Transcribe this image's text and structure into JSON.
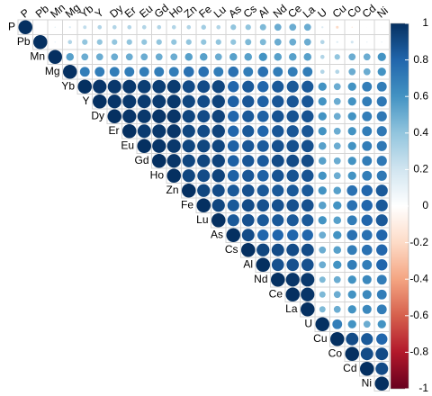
{
  "chart_data": {
    "type": "corrplot",
    "labels": [
      "P",
      "Pb",
      "Mn",
      "Mg",
      "Yb",
      "Y",
      "Dy",
      "Er",
      "Eu",
      "Gd",
      "Ho",
      "Zn",
      "Fe",
      "Lu",
      "As",
      "Cs",
      "Al",
      "Nd",
      "Ce",
      "La",
      "U",
      "Cu",
      "Co",
      "Cd",
      "Ni"
    ],
    "matrix": [
      [
        1,
        0.05,
        0.1,
        0.15,
        0.25,
        0.3,
        0.3,
        0.3,
        0.3,
        0.3,
        0.3,
        0.3,
        0.35,
        0.3,
        0.4,
        0.4,
        0.45,
        0.5,
        0.5,
        0.5,
        0.15,
        -0.2,
        -0.1,
        0.05,
        0.05
      ],
      [
        1,
        0.1,
        0.3,
        0.4,
        0.4,
        0.4,
        0.4,
        0.4,
        0.4,
        0.4,
        0.4,
        0.4,
        0.4,
        0.4,
        0.45,
        0.45,
        0.5,
        0.5,
        0.5,
        0.3,
        0.15,
        0.2,
        0.1,
        0.1
      ],
      [
        1,
        0.55,
        0.5,
        0.5,
        0.5,
        0.5,
        0.5,
        0.5,
        0.5,
        0.55,
        0.55,
        0.5,
        0.55,
        0.55,
        0.6,
        0.55,
        0.55,
        0.55,
        0.3,
        0.4,
        0.5,
        0.5,
        0.6
      ],
      [
        1,
        0.7,
        0.7,
        0.7,
        0.7,
        0.7,
        0.7,
        0.7,
        0.75,
        0.75,
        0.7,
        0.75,
        0.7,
        0.75,
        0.7,
        0.7,
        0.7,
        0.3,
        0.3,
        0.5,
        0.5,
        0.6
      ],
      [
        1,
        0.98,
        0.97,
        0.97,
        0.95,
        0.95,
        0.96,
        0.9,
        0.9,
        0.92,
        0.8,
        0.85,
        0.8,
        0.85,
        0.85,
        0.85,
        0.6,
        0.5,
        0.6,
        0.7,
        0.7
      ],
      [
        1,
        0.98,
        0.97,
        0.96,
        0.96,
        0.97,
        0.92,
        0.9,
        0.93,
        0.82,
        0.86,
        0.82,
        0.86,
        0.86,
        0.86,
        0.6,
        0.5,
        0.6,
        0.7,
        0.72
      ],
      [
        1,
        0.98,
        0.97,
        0.98,
        0.98,
        0.92,
        0.9,
        0.93,
        0.8,
        0.85,
        0.82,
        0.87,
        0.87,
        0.87,
        0.6,
        0.5,
        0.6,
        0.7,
        0.72
      ],
      [
        1,
        0.96,
        0.97,
        0.98,
        0.92,
        0.9,
        0.93,
        0.8,
        0.85,
        0.8,
        0.86,
        0.86,
        0.86,
        0.6,
        0.5,
        0.6,
        0.7,
        0.72
      ],
      [
        1,
        0.98,
        0.97,
        0.92,
        0.92,
        0.92,
        0.82,
        0.86,
        0.84,
        0.88,
        0.88,
        0.88,
        0.55,
        0.5,
        0.6,
        0.7,
        0.72
      ],
      [
        1,
        0.98,
        0.92,
        0.92,
        0.93,
        0.82,
        0.86,
        0.84,
        0.9,
        0.9,
        0.9,
        0.55,
        0.5,
        0.6,
        0.7,
        0.72
      ],
      [
        1,
        0.92,
        0.9,
        0.93,
        0.82,
        0.86,
        0.82,
        0.87,
        0.87,
        0.87,
        0.6,
        0.5,
        0.6,
        0.7,
        0.72
      ],
      [
        1,
        0.92,
        0.9,
        0.85,
        0.88,
        0.85,
        0.85,
        0.85,
        0.85,
        0.6,
        0.55,
        0.75,
        0.8,
        0.85
      ],
      [
        1,
        0.92,
        0.85,
        0.9,
        0.88,
        0.88,
        0.88,
        0.88,
        0.55,
        0.6,
        0.75,
        0.8,
        0.85
      ],
      [
        1,
        0.85,
        0.88,
        0.85,
        0.85,
        0.85,
        0.85,
        0.6,
        0.55,
        0.7,
        0.8,
        0.85
      ],
      [
        1,
        0.9,
        0.8,
        0.8,
        0.8,
        0.8,
        0.5,
        0.6,
        0.75,
        0.75,
        0.8
      ],
      [
        1,
        0.92,
        0.9,
        0.9,
        0.9,
        0.5,
        0.55,
        0.7,
        0.75,
        0.8
      ],
      [
        1,
        0.88,
        0.88,
        0.88,
        0.5,
        0.6,
        0.7,
        0.7,
        0.8
      ],
      [
        1,
        0.98,
        0.97,
        0.45,
        0.5,
        0.6,
        0.65,
        0.7
      ],
      [
        1,
        0.98,
        0.45,
        0.5,
        0.6,
        0.65,
        0.7
      ],
      [
        1,
        0.45,
        0.5,
        0.6,
        0.65,
        0.7
      ],
      [
        1,
        0.7,
        0.6,
        0.5,
        0.6
      ],
      [
        1,
        0.9,
        0.85,
        0.8
      ],
      [
        1,
        0.9,
        0.9
      ],
      [
        1,
        0.9
      ],
      [
        1
      ]
    ],
    "clim": [
      -1,
      1
    ],
    "cticks": [
      -1,
      -0.8,
      -0.6,
      -0.4,
      -0.2,
      0,
      0.2,
      0.4,
      0.6,
      0.8,
      1
    ],
    "colormap": [
      "#67001F",
      "#B2182B",
      "#D6604D",
      "#F4A582",
      "#FDDBC7",
      "#FFFFFF",
      "#D1E5F0",
      "#92C5DE",
      "#4393C3",
      "#2166AC",
      "#053061"
    ]
  }
}
